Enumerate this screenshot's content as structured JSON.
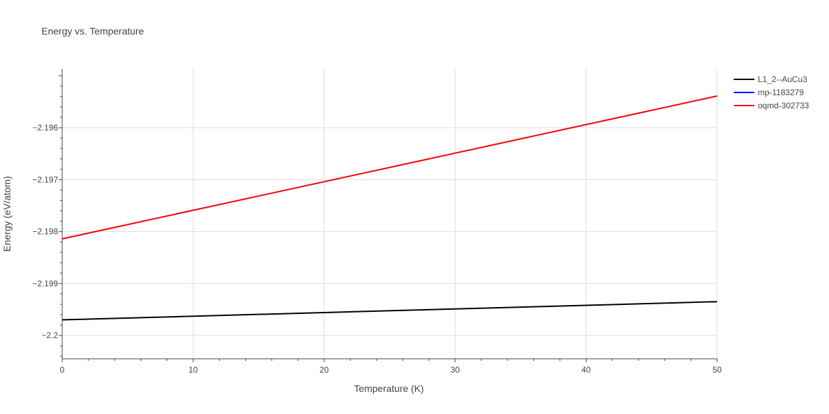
{
  "chart_data": {
    "type": "line",
    "title": "Energy vs. Temperature",
    "xlabel": "Temperature (K)",
    "ylabel": "Energy (eV/atom)",
    "xlim": [
      0,
      50
    ],
    "ylim": [
      -2.20045,
      -2.19487
    ],
    "x_ticks": [
      0,
      10,
      20,
      30,
      40,
      50
    ],
    "x_tick_labels": [
      "0",
      "10",
      "20",
      "30",
      "40",
      "50"
    ],
    "y_ticks": [
      -2.2,
      -2.199,
      -2.198,
      -2.197,
      -2.196
    ],
    "y_tick_labels": [
      "−2.2",
      "−2.199",
      "−2.198",
      "−2.197",
      "−2.196"
    ],
    "grid": true,
    "legend_position": "top-right",
    "series": [
      {
        "name": "L1_2--AuCu3",
        "color": "#000000",
        "x": [
          0,
          50
        ],
        "y": [
          -2.1997,
          -2.19935
        ]
      },
      {
        "name": "mp-1183279",
        "color": "#0000ff",
        "x": [],
        "y": []
      },
      {
        "name": "oqmd-302733",
        "color": "#ff0000",
        "x": [
          0,
          50
        ],
        "y": [
          -2.19814,
          -2.19539
        ]
      }
    ]
  }
}
